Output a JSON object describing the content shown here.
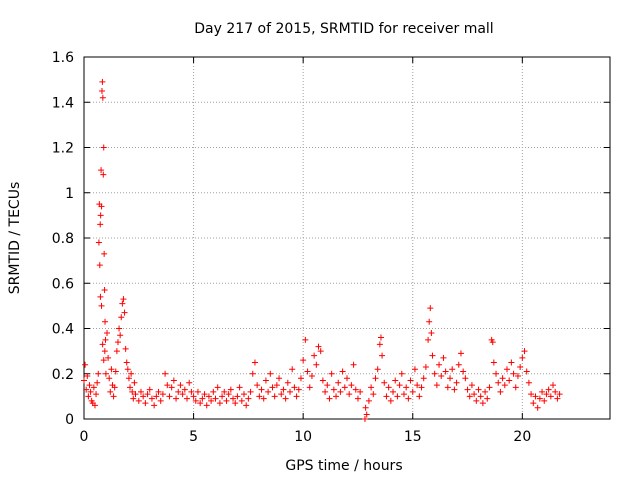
{
  "chart_data": {
    "type": "scatter",
    "title": "Day 217 of 2015, SRMTID for receiver mall",
    "xlabel": "GPS time / hours",
    "ylabel": "SRMTID / TECUs",
    "xlim": [
      0,
      24
    ],
    "ylim": [
      0,
      1.6
    ],
    "grid": true,
    "marker": "+",
    "series_color": "#ff0000",
    "x_ticks": [
      0,
      5,
      10,
      15,
      20
    ],
    "x_tick_labels": [
      "0",
      "5",
      "10",
      "15",
      "20"
    ],
    "y_ticks": [
      0,
      0.2,
      0.4,
      0.6,
      0.8,
      1.0,
      1.2,
      1.4,
      1.6
    ],
    "y_tick_labels": [
      "0",
      "0.2",
      "0.4",
      "0.6",
      "0.8",
      "1",
      "1.2",
      "1.4",
      "1.6"
    ],
    "series": [
      {
        "name": "SRMTID",
        "points": [
          [
            0.0,
            0.17
          ],
          [
            0.05,
            0.24
          ],
          [
            0.1,
            0.13
          ],
          [
            0.15,
            0.19
          ],
          [
            0.2,
            0.1
          ],
          [
            0.25,
            0.15
          ],
          [
            0.3,
            0.12
          ],
          [
            0.35,
            0.08
          ],
          [
            0.4,
            0.07
          ],
          [
            0.45,
            0.14
          ],
          [
            0.5,
            0.06
          ],
          [
            0.55,
            0.11
          ],
          [
            0.6,
            0.16
          ],
          [
            0.65,
            0.2
          ],
          [
            0.68,
            0.78
          ],
          [
            0.7,
            0.95
          ],
          [
            0.72,
            0.68
          ],
          [
            0.74,
            0.86
          ],
          [
            0.76,
            0.9
          ],
          [
            0.78,
            1.1
          ],
          [
            0.8,
            0.94
          ],
          [
            0.82,
            1.45
          ],
          [
            0.84,
            1.49
          ],
          [
            0.86,
            1.42
          ],
          [
            0.88,
            1.08
          ],
          [
            0.9,
            1.2
          ],
          [
            0.92,
            0.73
          ],
          [
            0.94,
            0.57
          ],
          [
            0.96,
            0.43
          ],
          [
            0.98,
            0.35
          ],
          [
            0.75,
            0.54
          ],
          [
            0.8,
            0.5
          ],
          [
            0.85,
            0.33
          ],
          [
            0.9,
            0.26
          ],
          [
            0.95,
            0.3
          ],
          [
            1.0,
            0.2
          ],
          [
            1.05,
            0.38
          ],
          [
            1.1,
            0.27
          ],
          [
            1.15,
            0.18
          ],
          [
            1.2,
            0.12
          ],
          [
            1.25,
            0.22
          ],
          [
            1.3,
            0.15
          ],
          [
            1.35,
            0.1
          ],
          [
            1.4,
            0.14
          ],
          [
            1.45,
            0.21
          ],
          [
            1.5,
            0.3
          ],
          [
            1.55,
            0.34
          ],
          [
            1.6,
            0.4
          ],
          [
            1.65,
            0.37
          ],
          [
            1.7,
            0.45
          ],
          [
            1.75,
            0.51
          ],
          [
            1.8,
            0.53
          ],
          [
            1.85,
            0.47
          ],
          [
            1.9,
            0.31
          ],
          [
            1.95,
            0.25
          ],
          [
            2.0,
            0.22
          ],
          [
            2.05,
            0.18
          ],
          [
            2.1,
            0.14
          ],
          [
            2.15,
            0.2
          ],
          [
            2.2,
            0.12
          ],
          [
            2.25,
            0.09
          ],
          [
            2.3,
            0.16
          ],
          [
            2.35,
            0.11
          ],
          [
            2.5,
            0.08
          ],
          [
            2.6,
            0.12
          ],
          [
            2.7,
            0.1
          ],
          [
            2.8,
            0.07
          ],
          [
            2.9,
            0.11
          ],
          [
            3.0,
            0.13
          ],
          [
            3.1,
            0.09
          ],
          [
            3.2,
            0.06
          ],
          [
            3.3,
            0.1
          ],
          [
            3.4,
            0.12
          ],
          [
            3.5,
            0.08
          ],
          [
            3.6,
            0.11
          ],
          [
            3.7,
            0.2
          ],
          [
            3.8,
            0.15
          ],
          [
            3.9,
            0.1
          ],
          [
            4.0,
            0.14
          ],
          [
            4.1,
            0.17
          ],
          [
            4.2,
            0.09
          ],
          [
            4.3,
            0.12
          ],
          [
            4.4,
            0.15
          ],
          [
            4.5,
            0.11
          ],
          [
            4.6,
            0.13
          ],
          [
            4.7,
            0.09
          ],
          [
            4.8,
            0.16
          ],
          [
            4.9,
            0.12
          ],
          [
            5.0,
            0.1
          ],
          [
            5.1,
            0.08
          ],
          [
            5.2,
            0.12
          ],
          [
            5.3,
            0.07
          ],
          [
            5.4,
            0.09
          ],
          [
            5.5,
            0.11
          ],
          [
            5.6,
            0.06
          ],
          [
            5.7,
            0.1
          ],
          [
            5.8,
            0.08
          ],
          [
            5.9,
            0.12
          ],
          [
            6.0,
            0.09
          ],
          [
            6.1,
            0.14
          ],
          [
            6.2,
            0.07
          ],
          [
            6.3,
            0.1
          ],
          [
            6.4,
            0.12
          ],
          [
            6.5,
            0.08
          ],
          [
            6.6,
            0.11
          ],
          [
            6.7,
            0.13
          ],
          [
            6.8,
            0.09
          ],
          [
            6.9,
            0.07
          ],
          [
            7.0,
            0.1
          ],
          [
            7.1,
            0.14
          ],
          [
            7.2,
            0.08
          ],
          [
            7.3,
            0.11
          ],
          [
            7.4,
            0.06
          ],
          [
            7.5,
            0.09
          ],
          [
            7.6,
            0.12
          ],
          [
            7.7,
            0.2
          ],
          [
            7.8,
            0.25
          ],
          [
            7.9,
            0.15
          ],
          [
            8.0,
            0.1
          ],
          [
            8.1,
            0.13
          ],
          [
            8.2,
            0.09
          ],
          [
            8.3,
            0.17
          ],
          [
            8.4,
            0.12
          ],
          [
            8.5,
            0.2
          ],
          [
            8.6,
            0.14
          ],
          [
            8.7,
            0.1
          ],
          [
            8.8,
            0.15
          ],
          [
            8.9,
            0.18
          ],
          [
            9.0,
            0.11
          ],
          [
            9.1,
            0.13
          ],
          [
            9.2,
            0.09
          ],
          [
            9.3,
            0.16
          ],
          [
            9.4,
            0.12
          ],
          [
            9.5,
            0.22
          ],
          [
            9.6,
            0.14
          ],
          [
            9.7,
            0.1
          ],
          [
            9.8,
            0.13
          ],
          [
            9.9,
            0.18
          ],
          [
            10.0,
            0.26
          ],
          [
            10.1,
            0.35
          ],
          [
            10.2,
            0.21
          ],
          [
            10.3,
            0.14
          ],
          [
            10.4,
            0.19
          ],
          [
            10.5,
            0.28
          ],
          [
            10.6,
            0.24
          ],
          [
            10.7,
            0.32
          ],
          [
            10.8,
            0.3
          ],
          [
            10.9,
            0.17
          ],
          [
            11.0,
            0.12
          ],
          [
            11.1,
            0.15
          ],
          [
            11.2,
            0.09
          ],
          [
            11.3,
            0.2
          ],
          [
            11.4,
            0.13
          ],
          [
            11.5,
            0.1
          ],
          [
            11.6,
            0.16
          ],
          [
            11.7,
            0.12
          ],
          [
            11.8,
            0.21
          ],
          [
            11.9,
            0.14
          ],
          [
            12.0,
            0.18
          ],
          [
            12.1,
            0.11
          ],
          [
            12.2,
            0.15
          ],
          [
            12.3,
            0.24
          ],
          [
            12.4,
            0.13
          ],
          [
            12.5,
            0.09
          ],
          [
            12.6,
            0.12
          ],
          [
            12.82,
            0.0
          ],
          [
            12.85,
            0.05
          ],
          [
            12.9,
            0.02
          ],
          [
            13.0,
            0.08
          ],
          [
            13.1,
            0.14
          ],
          [
            13.2,
            0.11
          ],
          [
            13.3,
            0.18
          ],
          [
            13.4,
            0.22
          ],
          [
            13.5,
            0.33
          ],
          [
            13.55,
            0.36
          ],
          [
            13.6,
            0.28
          ],
          [
            13.7,
            0.16
          ],
          [
            13.8,
            0.1
          ],
          [
            13.9,
            0.14
          ],
          [
            14.0,
            0.08
          ],
          [
            14.1,
            0.12
          ],
          [
            14.2,
            0.17
          ],
          [
            14.3,
            0.1
          ],
          [
            14.4,
            0.15
          ],
          [
            14.5,
            0.2
          ],
          [
            14.6,
            0.11
          ],
          [
            14.7,
            0.14
          ],
          [
            14.8,
            0.09
          ],
          [
            14.9,
            0.17
          ],
          [
            15.0,
            0.12
          ],
          [
            15.1,
            0.22
          ],
          [
            15.2,
            0.15
          ],
          [
            15.3,
            0.1
          ],
          [
            15.4,
            0.14
          ],
          [
            15.5,
            0.18
          ],
          [
            15.6,
            0.23
          ],
          [
            15.7,
            0.35
          ],
          [
            15.75,
            0.43
          ],
          [
            15.8,
            0.49
          ],
          [
            15.85,
            0.38
          ],
          [
            15.9,
            0.28
          ],
          [
            16.0,
            0.2
          ],
          [
            16.1,
            0.15
          ],
          [
            16.2,
            0.24
          ],
          [
            16.3,
            0.19
          ],
          [
            16.4,
            0.27
          ],
          [
            16.5,
            0.21
          ],
          [
            16.6,
            0.14
          ],
          [
            16.7,
            0.18
          ],
          [
            16.8,
            0.22
          ],
          [
            16.9,
            0.13
          ],
          [
            17.0,
            0.16
          ],
          [
            17.1,
            0.24
          ],
          [
            17.2,
            0.29
          ],
          [
            17.3,
            0.21
          ],
          [
            17.4,
            0.18
          ],
          [
            17.5,
            0.13
          ],
          [
            17.6,
            0.1
          ],
          [
            17.7,
            0.15
          ],
          [
            17.8,
            0.11
          ],
          [
            17.9,
            0.08
          ],
          [
            18.0,
            0.13
          ],
          [
            18.1,
            0.1
          ],
          [
            18.2,
            0.07
          ],
          [
            18.3,
            0.12
          ],
          [
            18.4,
            0.09
          ],
          [
            18.5,
            0.14
          ],
          [
            18.6,
            0.35
          ],
          [
            18.65,
            0.34
          ],
          [
            18.7,
            0.25
          ],
          [
            18.8,
            0.2
          ],
          [
            18.9,
            0.16
          ],
          [
            19.0,
            0.12
          ],
          [
            19.1,
            0.18
          ],
          [
            19.2,
            0.15
          ],
          [
            19.3,
            0.22
          ],
          [
            19.4,
            0.17
          ],
          [
            19.5,
            0.25
          ],
          [
            19.6,
            0.2
          ],
          [
            19.7,
            0.14
          ],
          [
            19.8,
            0.19
          ],
          [
            19.9,
            0.23
          ],
          [
            20.0,
            0.27
          ],
          [
            20.1,
            0.3
          ],
          [
            20.2,
            0.21
          ],
          [
            20.3,
            0.16
          ],
          [
            20.4,
            0.11
          ],
          [
            20.5,
            0.07
          ],
          [
            20.6,
            0.1
          ],
          [
            20.7,
            0.05
          ],
          [
            20.8,
            0.09
          ],
          [
            20.9,
            0.12
          ],
          [
            21.0,
            0.08
          ],
          [
            21.1,
            0.11
          ],
          [
            21.2,
            0.13
          ],
          [
            21.3,
            0.1
          ],
          [
            21.4,
            0.15
          ],
          [
            21.5,
            0.12
          ],
          [
            21.6,
            0.09
          ],
          [
            21.7,
            0.11
          ]
        ]
      }
    ]
  }
}
